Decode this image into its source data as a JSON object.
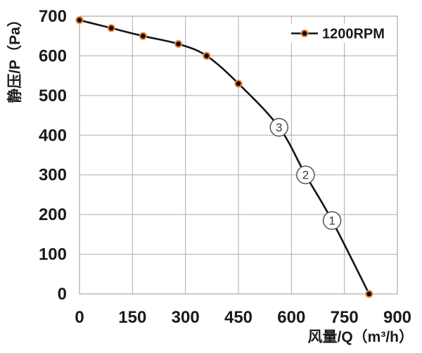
{
  "chart_data": {
    "type": "line",
    "title": "",
    "xlabel": "风量/Q（m³/h）",
    "ylabel": "静压/P（Pa）",
    "xlim": [
      0,
      900
    ],
    "ylim": [
      0,
      700
    ],
    "x_ticks": [
      0,
      150,
      300,
      450,
      600,
      750,
      900
    ],
    "y_ticks": [
      0,
      100,
      200,
      300,
      400,
      500,
      600,
      700
    ],
    "grid": true,
    "legend": {
      "label": "1200RPM",
      "position": "top-right-inside"
    },
    "series": [
      {
        "name": "1200RPM",
        "line_color": "#141414",
        "marker_fill": "#0a0a0a",
        "marker_ring": "#ED7D31",
        "points": [
          {
            "q": 0,
            "p": 690,
            "style": "dot"
          },
          {
            "q": 90,
            "p": 670,
            "style": "dot"
          },
          {
            "q": 180,
            "p": 650,
            "style": "dot"
          },
          {
            "q": 280,
            "p": 630,
            "style": "dot"
          },
          {
            "q": 360,
            "p": 600,
            "style": "dot"
          },
          {
            "q": 450,
            "p": 530,
            "style": "dot"
          },
          {
            "q": 565,
            "p": 420,
            "style": "circled",
            "label": "3"
          },
          {
            "q": 640,
            "p": 300,
            "style": "circled",
            "label": "2"
          },
          {
            "q": 715,
            "p": 185,
            "style": "circled",
            "label": "1"
          },
          {
            "q": 820,
            "p": 0,
            "style": "dot"
          }
        ]
      }
    ],
    "annotations": [
      {
        "label": "③",
        "q": 565,
        "p": 420
      },
      {
        "label": "②",
        "q": 640,
        "p": 300
      },
      {
        "label": "①",
        "q": 715,
        "p": 185
      }
    ],
    "colors": {
      "background": "#ffffff",
      "grid": "#ababab",
      "border": "#ababab",
      "text": "#1a1a1a",
      "line": "#141414",
      "marker_fill": "#0a0a0a",
      "marker_ring": "#ED7D31",
      "annotation_stroke": "#4a4a4a",
      "annotation_text": "#3a3a3a"
    }
  }
}
